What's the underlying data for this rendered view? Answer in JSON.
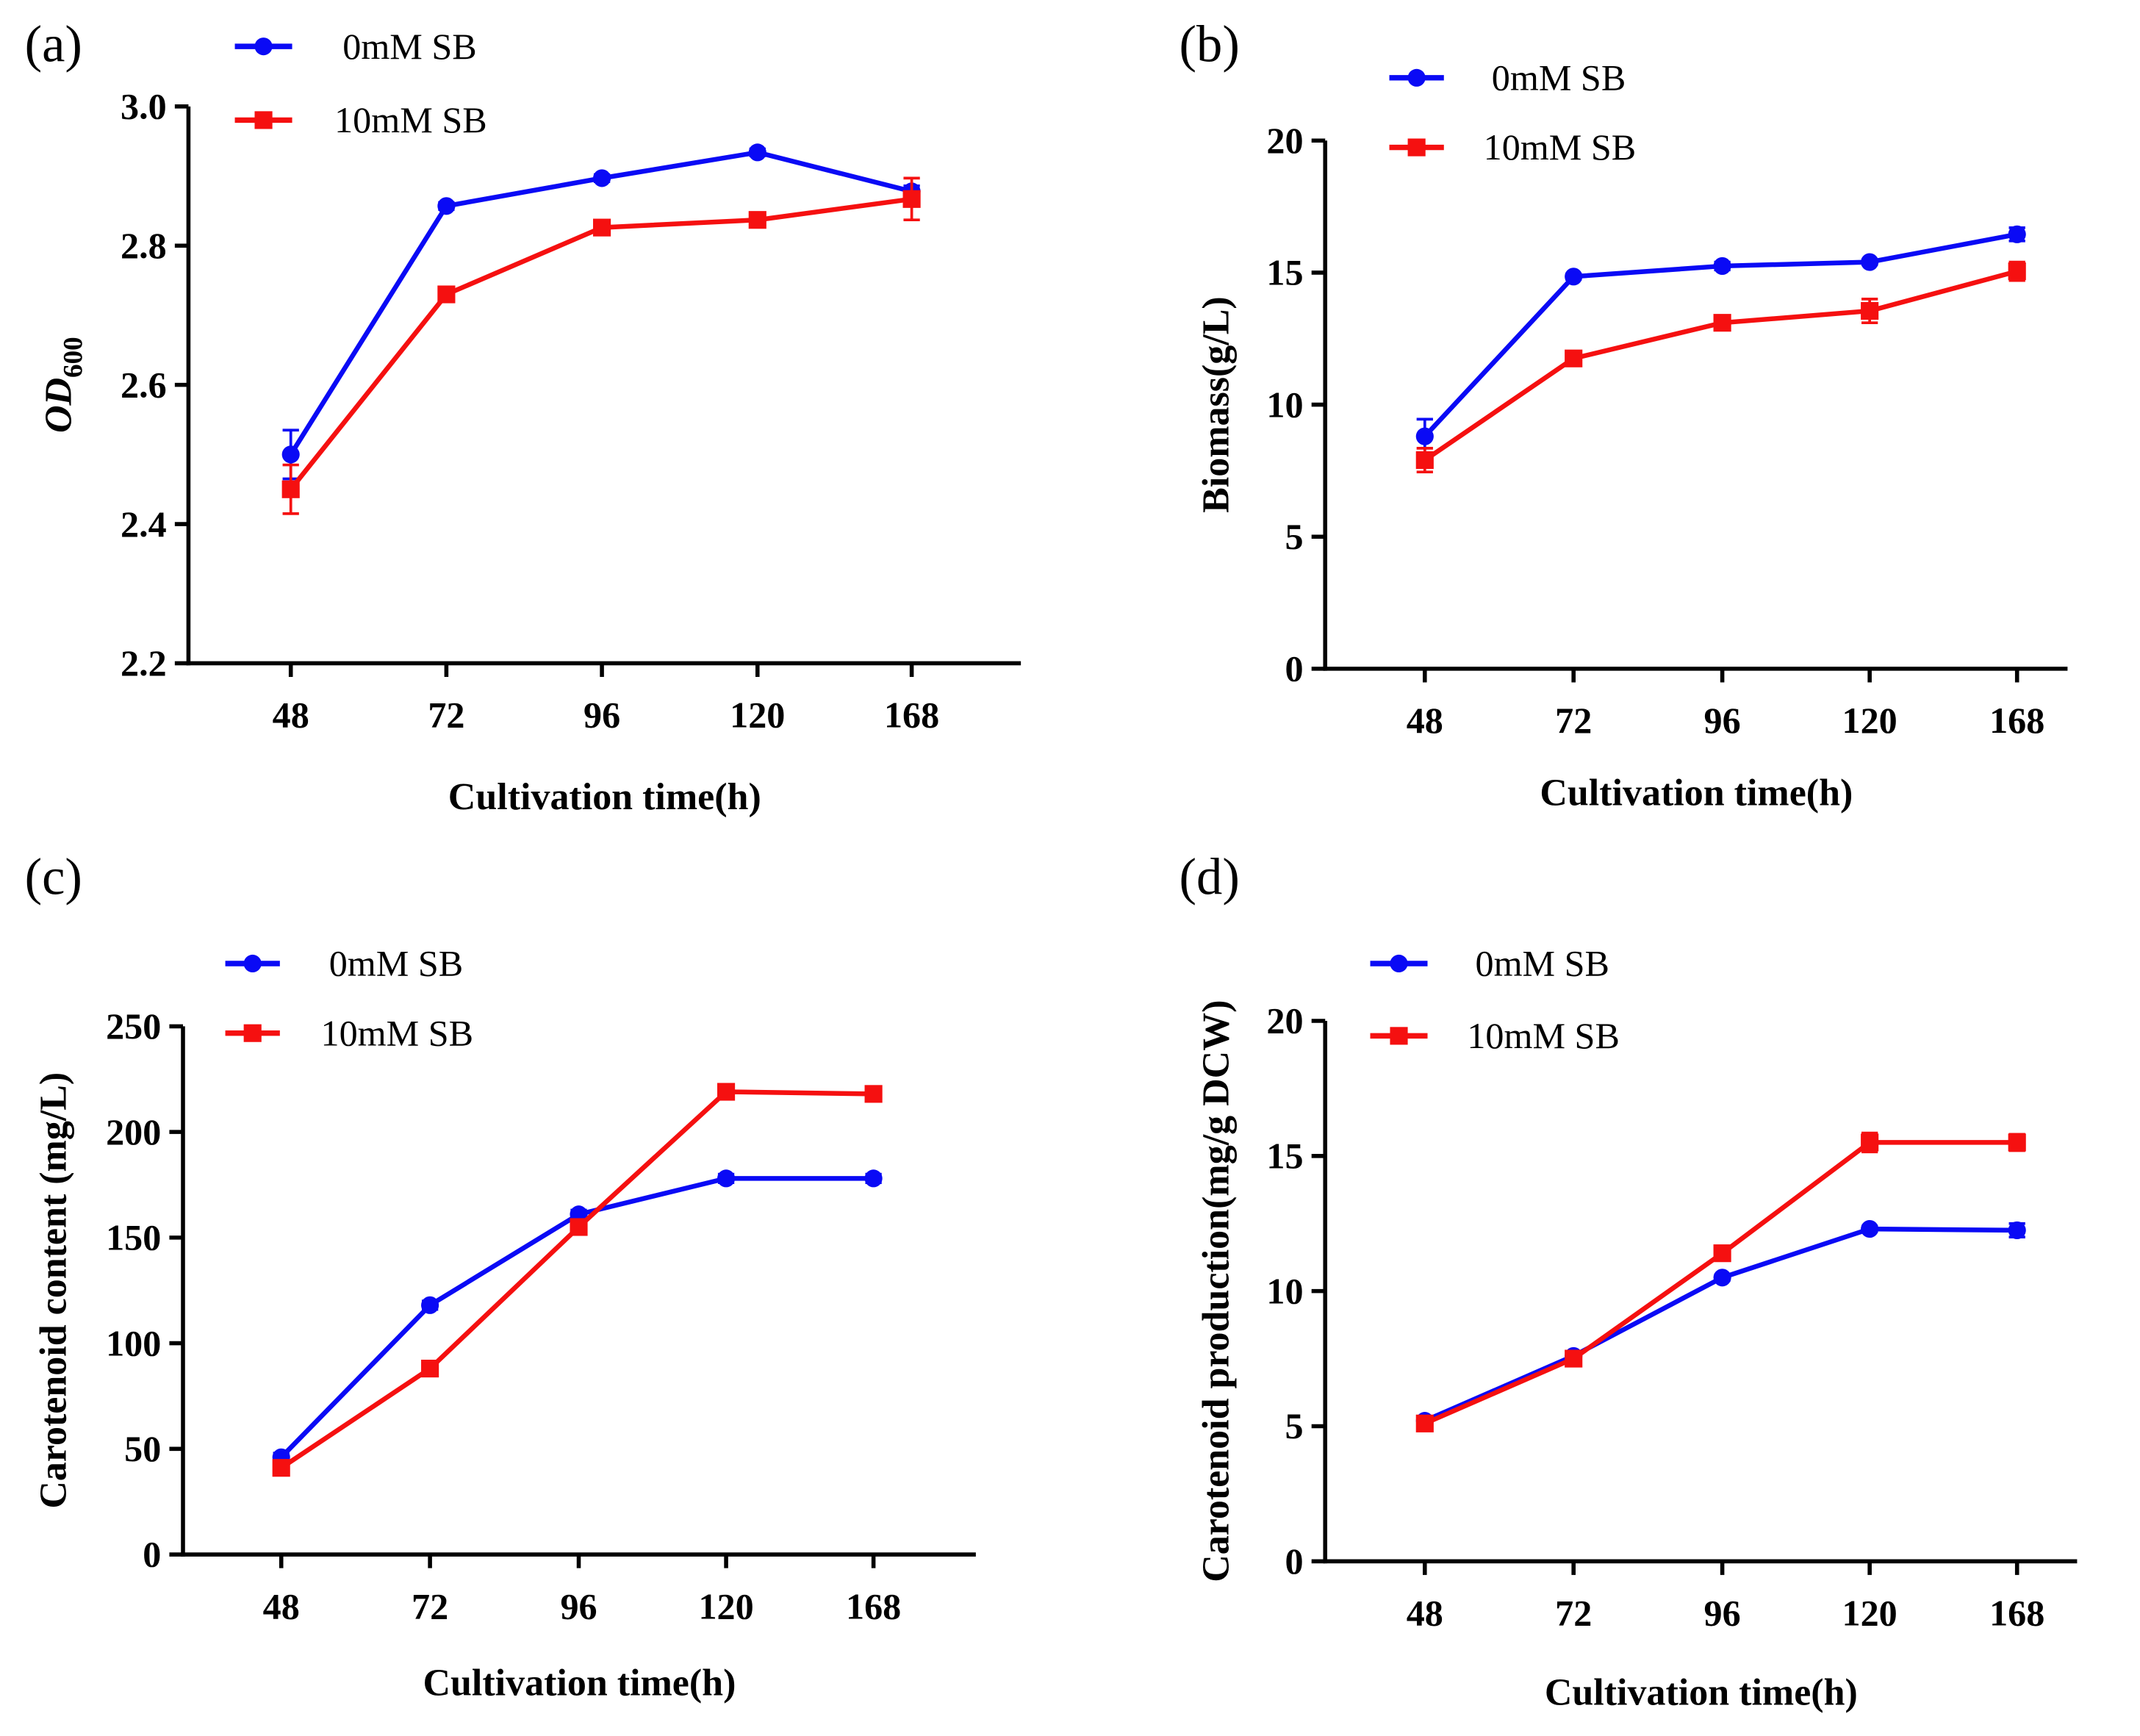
{
  "chart_data": [
    {
      "type": "line",
      "panel_label": "(a)",
      "title": "",
      "xlabel": "Cultivation time(h)",
      "ylabel_main": "OD",
      "ylabel_sub": "600",
      "categories": [
        "48",
        "72",
        "96",
        "120",
        "168"
      ],
      "ylim": [
        2.2,
        3.0
      ],
      "yticks": [
        "2.2",
        "2.4",
        "2.6",
        "2.8",
        "3.0"
      ],
      "legend_position": "top-left",
      "series": [
        {
          "name": "0mM SB",
          "color": "#0a0af5",
          "marker": "circle",
          "values": [
            2.5,
            2.857,
            2.897,
            2.934,
            2.878
          ],
          "errors": [
            0.035,
            0.005,
            0.005,
            0.005,
            0.008
          ]
        },
        {
          "name": "10mM SB",
          "color": "#f51010",
          "marker": "square",
          "values": [
            2.45,
            2.73,
            2.826,
            2.837,
            2.867
          ],
          "errors": [
            0.035,
            0.005,
            0.006,
            0.006,
            0.03
          ]
        }
      ]
    },
    {
      "type": "line",
      "panel_label": "(b)",
      "title": "",
      "xlabel": "Cultivation time(h)",
      "ylabel_main": "Biomass(g/L)",
      "ylabel_sub": "",
      "categories": [
        "48",
        "72",
        "96",
        "120",
        "168"
      ],
      "ylim": [
        0,
        20
      ],
      "yticks": [
        "0",
        "5",
        "10",
        "15",
        "20"
      ],
      "legend_position": "top-left",
      "series": [
        {
          "name": "0mM SB",
          "color": "#0a0af5",
          "marker": "circle",
          "values": [
            8.8,
            14.85,
            15.25,
            15.4,
            16.45
          ],
          "errors": [
            0.65,
            0.1,
            0.15,
            0.1,
            0.25
          ]
        },
        {
          "name": "10mM SB",
          "color": "#f51010",
          "marker": "square",
          "values": [
            7.9,
            11.75,
            13.1,
            13.55,
            15.05
          ],
          "errors": [
            0.45,
            0.15,
            0.15,
            0.45,
            0.35
          ]
        }
      ]
    },
    {
      "type": "line",
      "panel_label": "(c)",
      "title": "",
      "xlabel": "Cultivation time(h)",
      "ylabel_main": "Carotenoid content  (mg/L)",
      "ylabel_sub": "",
      "categories": [
        "48",
        "72",
        "96",
        "120",
        "168"
      ],
      "ylim": [
        0,
        250
      ],
      "yticks": [
        "0",
        "50",
        "100",
        "150",
        "200",
        "250"
      ],
      "legend_position": "top-left",
      "series": [
        {
          "name": "0mM SB",
          "color": "#0a0af5",
          "marker": "circle",
          "values": [
            46,
            118,
            161,
            178,
            178
          ],
          "errors": [
            2,
            2,
            2,
            2,
            2
          ]
        },
        {
          "name": "10mM SB",
          "color": "#f51010",
          "marker": "square",
          "values": [
            41,
            88,
            155,
            219,
            218
          ],
          "errors": [
            2,
            2,
            2,
            3,
            2
          ]
        }
      ]
    },
    {
      "type": "line",
      "panel_label": "(d)",
      "title": "",
      "xlabel": "Cultivation time(h)",
      "ylabel_main": "Carotenoid production(mg/g DCW)",
      "ylabel_sub": "",
      "categories": [
        "48",
        "72",
        "96",
        "120",
        "168"
      ],
      "ylim": [
        0,
        20
      ],
      "yticks": [
        "0",
        "5",
        "10",
        "15",
        "20"
      ],
      "legend_position": "top-left",
      "series": [
        {
          "name": "0mM SB",
          "color": "#0a0af5",
          "marker": "circle",
          "values": [
            5.2,
            7.6,
            10.5,
            12.3,
            12.25
          ],
          "errors": [
            0.1,
            0.1,
            0.1,
            0.1,
            0.25
          ]
        },
        {
          "name": "10mM SB",
          "color": "#f51010",
          "marker": "square",
          "values": [
            5.1,
            7.5,
            11.4,
            15.5,
            15.5
          ],
          "errors": [
            0.1,
            0.1,
            0.25,
            0.35,
            0.3
          ]
        }
      ]
    }
  ]
}
